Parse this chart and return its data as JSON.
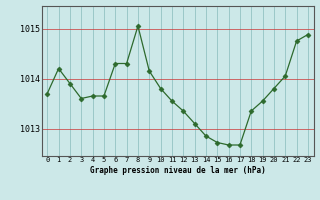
{
  "hours": [
    0,
    1,
    2,
    3,
    4,
    5,
    6,
    7,
    8,
    9,
    10,
    11,
    12,
    13,
    14,
    15,
    16,
    17,
    18,
    19,
    20,
    21,
    22,
    23
  ],
  "pressure": [
    1013.7,
    1014.2,
    1013.9,
    1013.6,
    1013.65,
    1013.65,
    1014.3,
    1014.3,
    1015.05,
    1014.15,
    1013.8,
    1013.55,
    1013.35,
    1013.1,
    1012.85,
    1012.72,
    1012.67,
    1012.67,
    1013.35,
    1013.55,
    1013.8,
    1014.05,
    1014.75,
    1014.88
  ],
  "line_color": "#2d6a2d",
  "marker": "D",
  "marker_size": 2.5,
  "bg_color": "#cce8e8",
  "xlabel": "Graphe pression niveau de la mer (hPa)",
  "ylim_min": 1012.45,
  "ylim_max": 1015.45,
  "yticks": [
    1013,
    1014,
    1015
  ],
  "figsize": [
    3.2,
    2.0
  ],
  "dpi": 100
}
